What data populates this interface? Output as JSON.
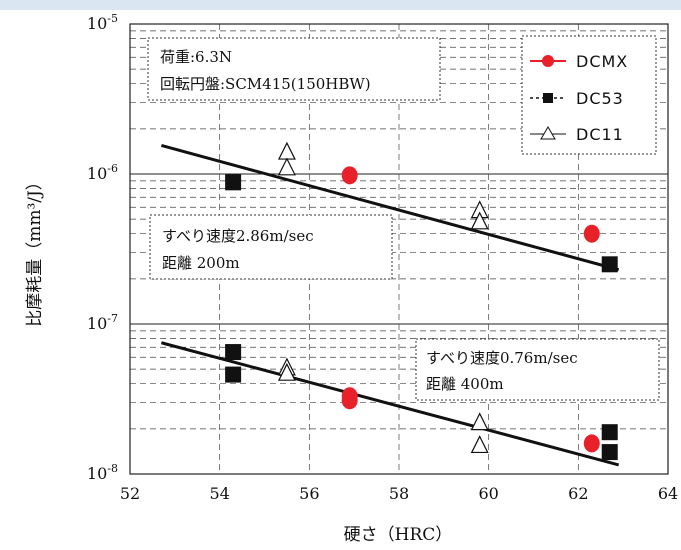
{
  "chart_data": {
    "type": "scatter",
    "xlabel": "硬さ（HRC）",
    "ylabel": "比摩耗量（mm³/J）",
    "xlim": [
      52,
      64
    ],
    "ylim_log10": [
      -8,
      -5
    ],
    "y_scale": "log",
    "x_ticks": [
      "52",
      "54",
      "56",
      "58",
      "60",
      "62",
      "64"
    ],
    "y_ticks": [
      {
        "base": "10",
        "exp": "-8"
      },
      {
        "base": "10",
        "exp": "-7"
      },
      {
        "base": "10",
        "exp": "-6"
      },
      {
        "base": "10",
        "exp": "-5"
      }
    ],
    "grid": true,
    "legend_position": "top-right",
    "series": [
      {
        "name": "DCMX",
        "marker": "circle",
        "color": "#e8202a",
        "points": [
          [
            56.9,
            9.8e-07
          ],
          [
            62.3,
            4e-07
          ],
          [
            56.9,
            3.3e-08
          ],
          [
            56.9,
            3.1e-08
          ],
          [
            62.3,
            1.6e-08
          ]
        ]
      },
      {
        "name": "DC53",
        "marker": "square",
        "color": "#111111",
        "points": [
          [
            54.3,
            8.8e-07
          ],
          [
            62.7,
            2.5e-07
          ],
          [
            54.3,
            6.5e-08
          ],
          [
            54.3,
            4.6e-08
          ],
          [
            62.7,
            1.9e-08
          ],
          [
            62.7,
            1.4e-08
          ]
        ]
      },
      {
        "name": "DC11",
        "marker": "triangle-open",
        "color": "#111111",
        "points": [
          [
            55.5,
            1.4e-06
          ],
          [
            55.5,
            1.1e-06
          ],
          [
            59.8,
            5.7e-07
          ],
          [
            59.8,
            4.8e-07
          ],
          [
            55.5,
            5.1e-08
          ],
          [
            55.5,
            4.7e-08
          ],
          [
            59.8,
            2.2e-08
          ],
          [
            59.8,
            1.55e-08
          ]
        ]
      }
    ],
    "trend_lines": [
      {
        "from": [
          52.7,
          1.55e-06
        ],
        "to": [
          62.9,
          2.3e-07
        ]
      },
      {
        "from": [
          52.7,
          7.5e-08
        ],
        "to": [
          62.9,
          1.15e-08
        ]
      }
    ],
    "annotations": [
      {
        "lines": [
          "荷重:6.3N",
          "回転円盤:SCM415(150HBW)"
        ]
      },
      {
        "lines": [
          "すべり速度2.86m/sec",
          "距離 200m"
        ]
      },
      {
        "lines": [
          "すべり速度0.76m/sec",
          "距離 400m"
        ]
      }
    ]
  }
}
